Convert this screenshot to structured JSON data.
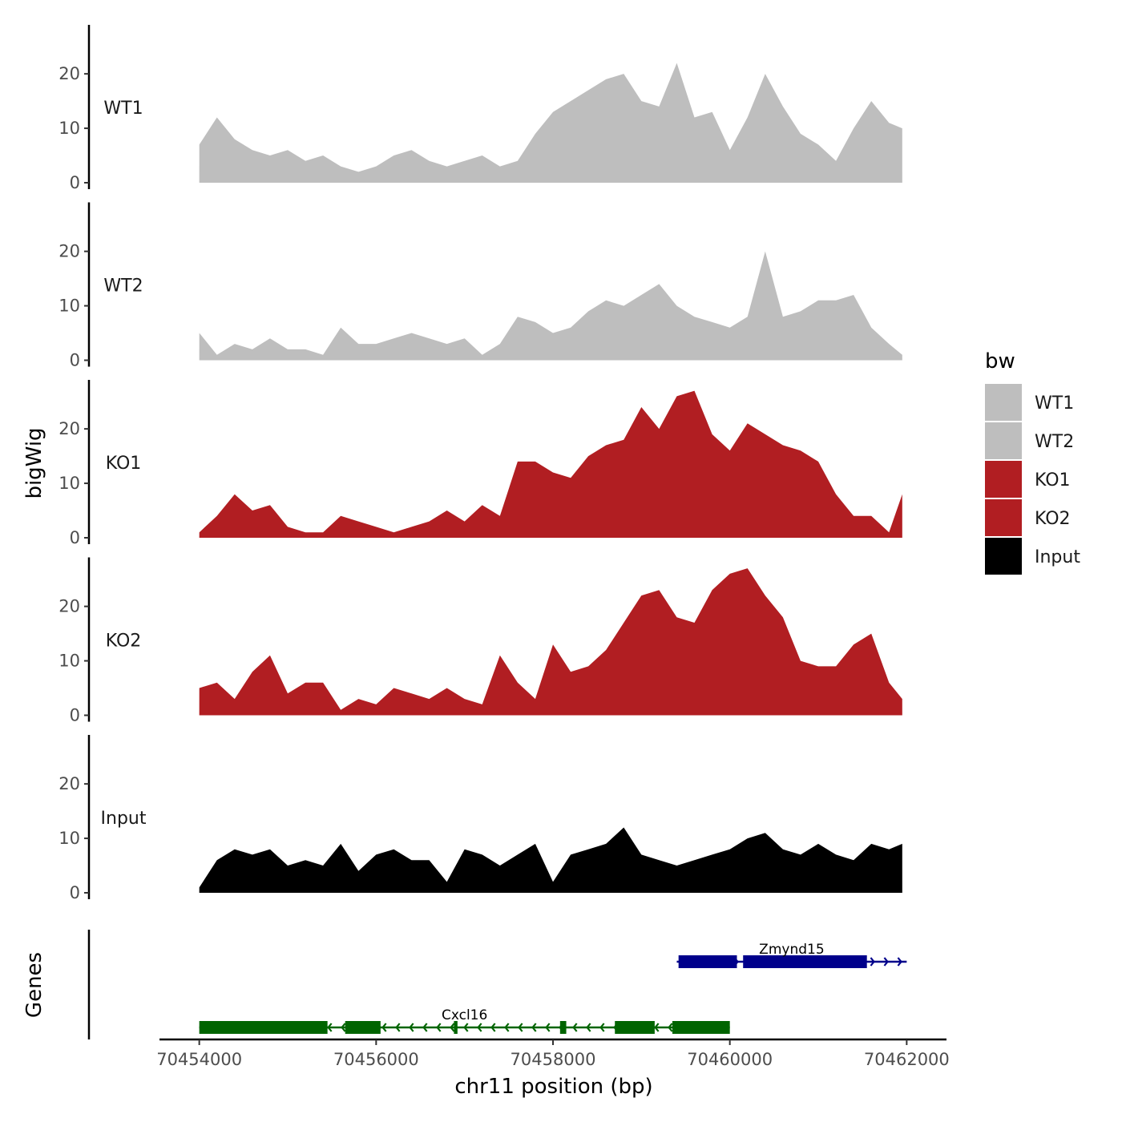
{
  "chart_data": {
    "type": "area",
    "chromosome": "chr11",
    "xlabel": "chr11 position (bp)",
    "ylabel": "bigWig",
    "genes_label": "Genes",
    "xlim": [
      70453550,
      70462450
    ],
    "x_ticks": [
      70454000,
      70456000,
      70458000,
      70460000,
      70462000
    ],
    "x_tick_labels": [
      "70454000",
      "70456000",
      "70458000",
      "70460000",
      "70462000"
    ],
    "ylim": [
      0,
      29
    ],
    "y_ticks": [
      0,
      10,
      20
    ],
    "y_tick_labels": [
      "0",
      "10",
      "20"
    ],
    "x": [
      70454000,
      70454200,
      70454400,
      70454600,
      70454800,
      70455000,
      70455200,
      70455400,
      70455600,
      70455800,
      70456000,
      70456200,
      70456400,
      70456600,
      70456800,
      70457000,
      70457200,
      70457400,
      70457600,
      70457800,
      70458000,
      70458200,
      70458400,
      70458600,
      70458800,
      70459000,
      70459200,
      70459400,
      70459600,
      70459800,
      70460000,
      70460200,
      70460400,
      70460600,
      70460800,
      70461000,
      70461200,
      70461400,
      70461600,
      70461800,
      70461950
    ],
    "series": [
      {
        "name": "WT1",
        "color": "#bebebe",
        "values": [
          7,
          12,
          8,
          6,
          5,
          6,
          4,
          5,
          3,
          2,
          3,
          5,
          6,
          4,
          3,
          4,
          5,
          3,
          4,
          9,
          13,
          15,
          17,
          19,
          20,
          15,
          14,
          22,
          12,
          13,
          6,
          12,
          20,
          14,
          9,
          7,
          4,
          10,
          15,
          11,
          10
        ]
      },
      {
        "name": "WT2",
        "color": "#bebebe",
        "values": [
          5,
          1,
          3,
          2,
          4,
          2,
          2,
          1,
          6,
          3,
          3,
          4,
          5,
          4,
          3,
          4,
          1,
          3,
          8,
          7,
          5,
          6,
          9,
          11,
          10,
          12,
          14,
          10,
          8,
          7,
          6,
          8,
          20,
          8,
          9,
          11,
          11,
          12,
          6,
          3,
          1
        ]
      },
      {
        "name": "KO1",
        "color": "#b11e22",
        "values": [
          1,
          4,
          8,
          5,
          6,
          2,
          1,
          1,
          4,
          3,
          2,
          1,
          2,
          3,
          5,
          3,
          6,
          4,
          14,
          14,
          12,
          11,
          15,
          17,
          18,
          24,
          20,
          26,
          27,
          19,
          16,
          21,
          19,
          17,
          16,
          14,
          8,
          4,
          4,
          1,
          8
        ]
      },
      {
        "name": "KO2",
        "color": "#b11e22",
        "values": [
          5,
          6,
          3,
          8,
          11,
          4,
          6,
          6,
          1,
          3,
          2,
          5,
          4,
          3,
          5,
          3,
          2,
          11,
          6,
          3,
          13,
          8,
          9,
          12,
          17,
          22,
          23,
          18,
          17,
          23,
          26,
          27,
          22,
          18,
          10,
          9,
          9,
          13,
          15,
          6,
          3
        ]
      },
      {
        "name": "Input",
        "color": "#000000",
        "values": [
          1,
          6,
          8,
          7,
          8,
          5,
          6,
          5,
          9,
          4,
          7,
          8,
          6,
          6,
          2,
          8,
          7,
          5,
          7,
          9,
          2,
          7,
          8,
          9,
          12,
          7,
          6,
          5,
          6,
          7,
          8,
          10,
          11,
          8,
          7,
          9,
          7,
          6,
          9,
          8,
          9
        ]
      }
    ],
    "genes": [
      {
        "name": "Zmynd15",
        "strand": "+",
        "color": "#00008b",
        "start": 70459400,
        "end": 70462000,
        "exons": [
          [
            70459420,
            70460080
          ],
          [
            70460150,
            70461550
          ]
        ]
      },
      {
        "name": "Cxcl16",
        "strand": "-",
        "color": "#006400",
        "start": 70454000,
        "end": 70460000,
        "exons": [
          [
            70454000,
            70455450
          ],
          [
            70455650,
            70456050
          ],
          [
            70456880,
            70456920
          ],
          [
            70458080,
            70458150
          ],
          [
            70458700,
            70459150
          ],
          [
            70459350,
            70460000
          ]
        ]
      }
    ],
    "legend": {
      "title": "bw",
      "position": "right",
      "entries": [
        {
          "label": "WT1",
          "color": "#bebebe"
        },
        {
          "label": "WT2",
          "color": "#bebebe"
        },
        {
          "label": "KO1",
          "color": "#b11e22"
        },
        {
          "label": "KO2",
          "color": "#b11e22"
        },
        {
          "label": "Input",
          "color": "#000000"
        }
      ]
    }
  }
}
